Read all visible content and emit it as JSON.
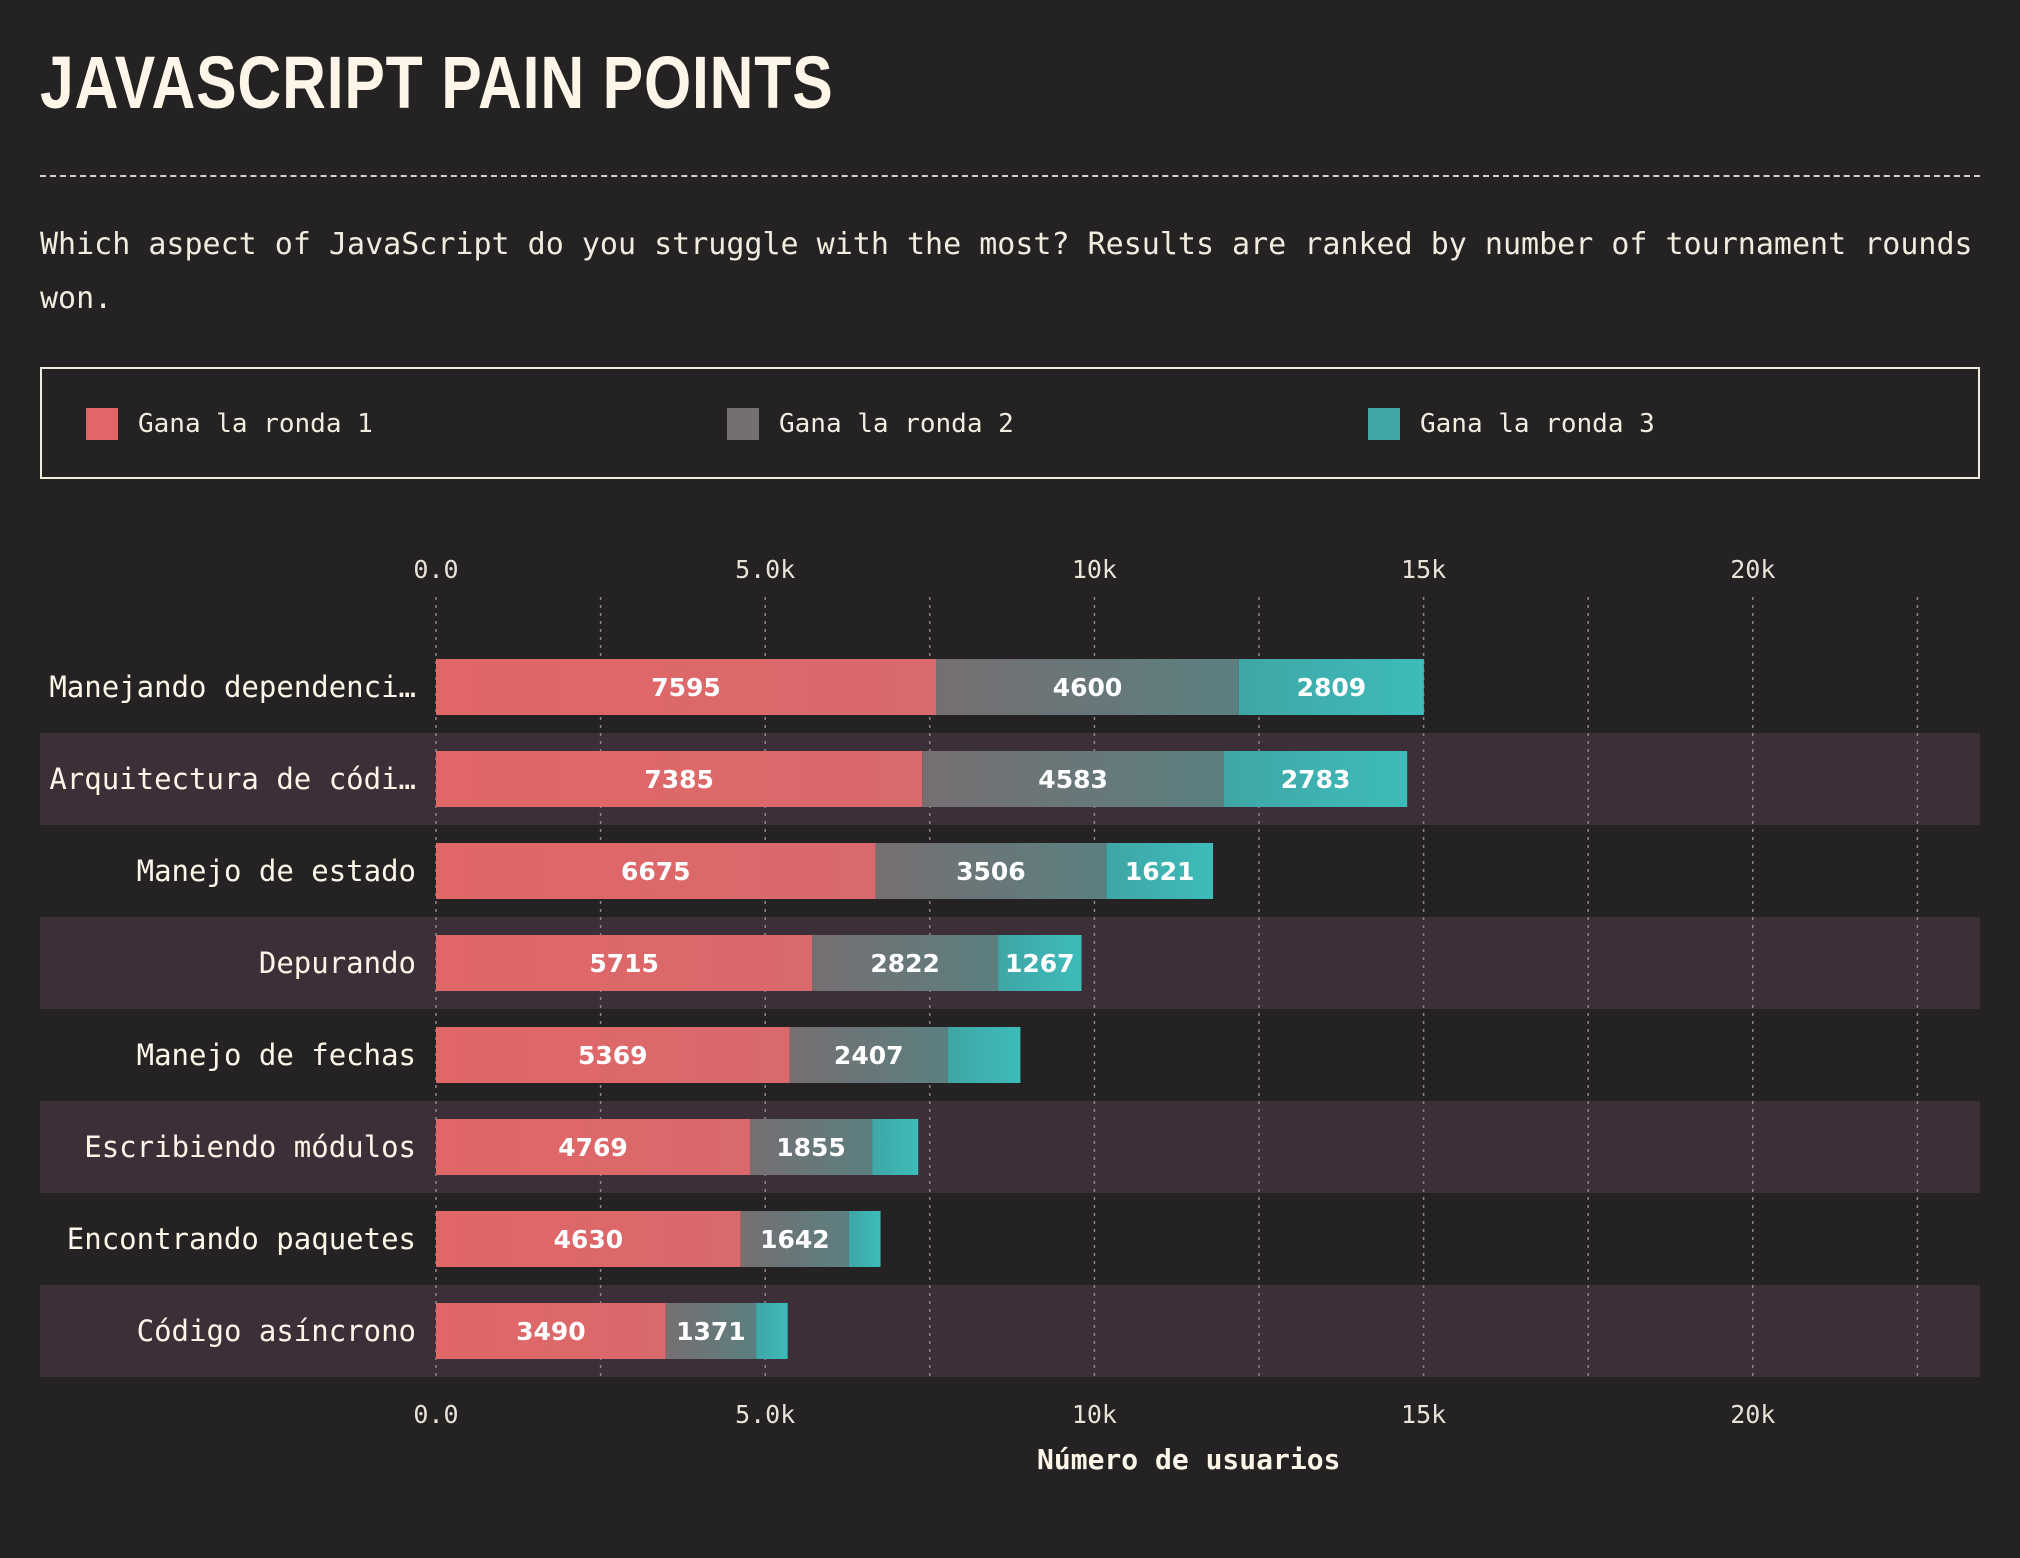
{
  "header": {
    "title": "JAVASCRIPT PAIN POINTS",
    "description": "Which aspect of JavaScript do you struggle with the most? Results are ranked by number of tournament rounds won."
  },
  "legend": [
    {
      "label": "Gana la ronda 1",
      "color": "#e06668"
    },
    {
      "label": "Gana la ronda 2",
      "color": "#766f72"
    },
    {
      "label": "Gana la ronda 3",
      "color": "#3fa6a6"
    }
  ],
  "chart_data": {
    "type": "bar",
    "orientation": "horizontal",
    "stacked": true,
    "categories": [
      "Manejando dependenci…",
      "Arquitectura de códi…",
      "Manejo de estado",
      "Depurando",
      "Manejo de fechas",
      "Escribiendo módulos",
      "Encontrando paquetes",
      "Código asíncrono"
    ],
    "series": [
      {
        "name": "Gana la ronda 1",
        "values": [
          7595,
          7385,
          6675,
          5715,
          5369,
          4769,
          4630,
          3490
        ]
      },
      {
        "name": "Gana la ronda 2",
        "values": [
          4600,
          4583,
          3506,
          2822,
          2407,
          1855,
          1642,
          1371
        ]
      },
      {
        "name": "Gana la ronda 3",
        "values": [
          2809,
          2783,
          1621,
          1267,
          1100,
          700,
          480,
          480
        ]
      }
    ],
    "value_labels_shown": [
      [
        true,
        true,
        true,
        true,
        true,
        true,
        true,
        true
      ],
      [
        true,
        true,
        true,
        true,
        true,
        true,
        true,
        true
      ],
      [
        true,
        true,
        true,
        true,
        false,
        false,
        false,
        false
      ]
    ],
    "xlim": [
      0,
      23500
    ],
    "x_ticks": [
      0,
      5000,
      10000,
      15000,
      20000
    ],
    "x_tick_labels": [
      "0.0",
      "5.0k",
      "10k",
      "15k",
      "20k"
    ],
    "xlabel": "Número de usuarios",
    "grid": true,
    "legend_position": "top",
    "colors": {
      "round1": "#e06668",
      "round2": "#766f72",
      "round3": "#3fa6a6",
      "round3_bright": "#3dbcba",
      "band": "#3d2f38",
      "background": "#252224"
    }
  }
}
